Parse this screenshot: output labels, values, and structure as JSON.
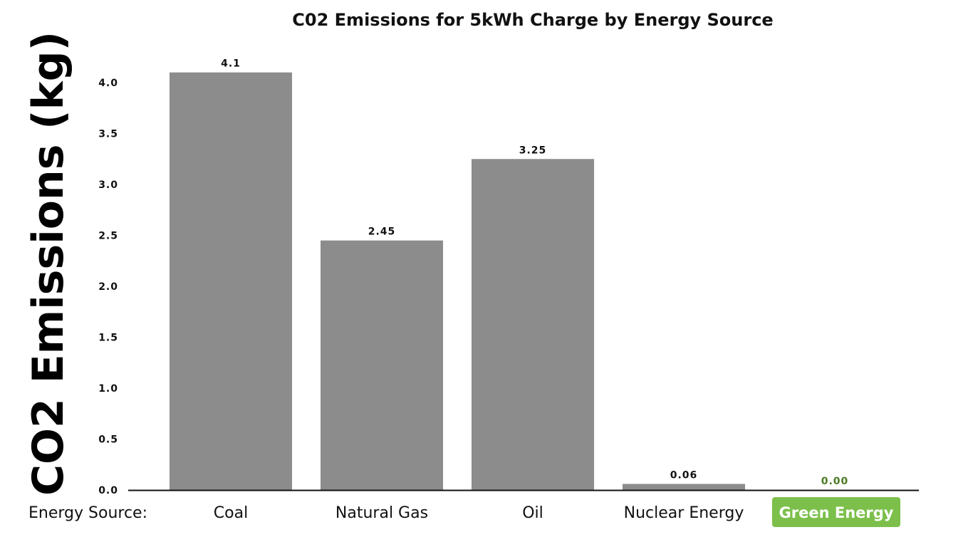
{
  "chart_data": {
    "type": "bar",
    "title": "C02 Emissions for 5kWh Charge by Energy Source",
    "ylabel": "CO2 Emissions (kg)",
    "xlabel": "Energy Source:",
    "categories": [
      "Coal",
      "Natural Gas",
      "Oil",
      "Nuclear Energy",
      "Green Energy"
    ],
    "values": [
      4.1,
      2.45,
      3.25,
      0.06,
      0.0
    ],
    "value_labels": [
      "4.1",
      "2.45",
      "3.25",
      "0.06",
      "0.00"
    ],
    "yticks": [
      "0.0",
      "0.5",
      "1.0",
      "1.5",
      "2.0",
      "2.5",
      "3.0",
      "3.5",
      "4.0"
    ],
    "ylim": [
      0,
      4.2
    ],
    "grid": false,
    "colors": {
      "bar": "#8c8c8c",
      "axis": "#111111",
      "highlight_bg": "#7cc04b",
      "highlight_text": "#ffffff",
      "highlight_value": "#4a7a22"
    },
    "highlight_category": "Green Energy"
  }
}
